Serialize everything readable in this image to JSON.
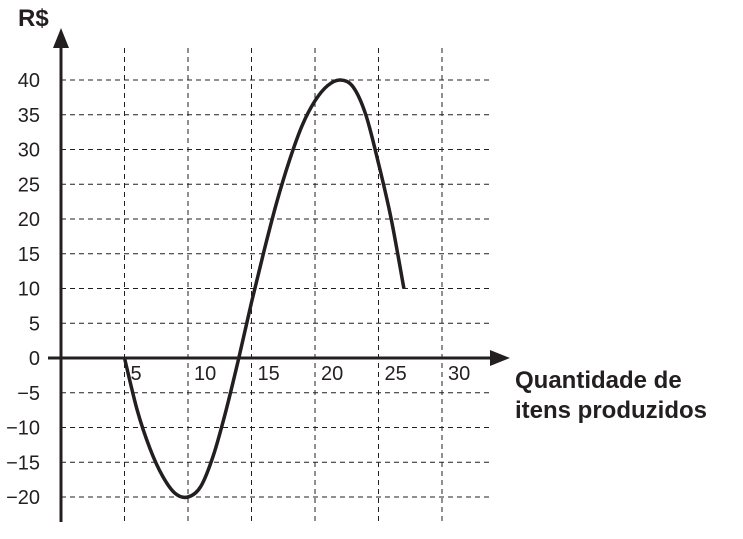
{
  "chart_data": {
    "type": "line",
    "title": "",
    "ylabel": "R$",
    "xlabel": [
      "Quantidade de",
      "itens produzidos"
    ],
    "xlim": [
      0,
      35
    ],
    "ylim": [
      -23.5,
      44
    ],
    "x_ticks": [
      5,
      10,
      15,
      20,
      25,
      30
    ],
    "x_tick_labels": [
      "5",
      "10",
      "15",
      "20",
      "25",
      "30"
    ],
    "y_ticks": [
      40,
      35,
      30,
      25,
      20,
      15,
      10,
      5,
      0,
      -5,
      -10,
      -15,
      -20
    ],
    "y_tick_labels": [
      "40",
      "35",
      "30",
      "25",
      "20",
      "15",
      "10",
      "5",
      "0",
      "−5",
      "−10",
      "−15",
      "−20"
    ],
    "grid": true,
    "legend": "none",
    "colors": {
      "line": "#231f20",
      "grid": "#231f20",
      "text": "#231f20"
    },
    "series": [
      {
        "points": [
          {
            "x": 5,
            "y": 0
          },
          {
            "x": 6,
            "y": -7.5
          },
          {
            "x": 7,
            "y": -13
          },
          {
            "x": 8,
            "y": -17
          },
          {
            "x": 9,
            "y": -19.5
          },
          {
            "x": 10,
            "y": -20
          },
          {
            "x": 11,
            "y": -18.5
          },
          {
            "x": 12,
            "y": -14
          },
          {
            "x": 13,
            "y": -7.5
          },
          {
            "x": 14,
            "y": 0
          },
          {
            "x": 15,
            "y": 8
          },
          {
            "x": 16,
            "y": 15.5
          },
          {
            "x": 17,
            "y": 22.5
          },
          {
            "x": 18,
            "y": 28.5
          },
          {
            "x": 19,
            "y": 33.5
          },
          {
            "x": 20,
            "y": 37
          },
          {
            "x": 21,
            "y": 39.2
          },
          {
            "x": 22,
            "y": 40
          },
          {
            "x": 23,
            "y": 39
          },
          {
            "x": 24,
            "y": 35
          },
          {
            "x": 25,
            "y": 28
          },
          {
            "x": 26,
            "y": 20
          },
          {
            "x": 27,
            "y": 10
          }
        ]
      }
    ]
  }
}
